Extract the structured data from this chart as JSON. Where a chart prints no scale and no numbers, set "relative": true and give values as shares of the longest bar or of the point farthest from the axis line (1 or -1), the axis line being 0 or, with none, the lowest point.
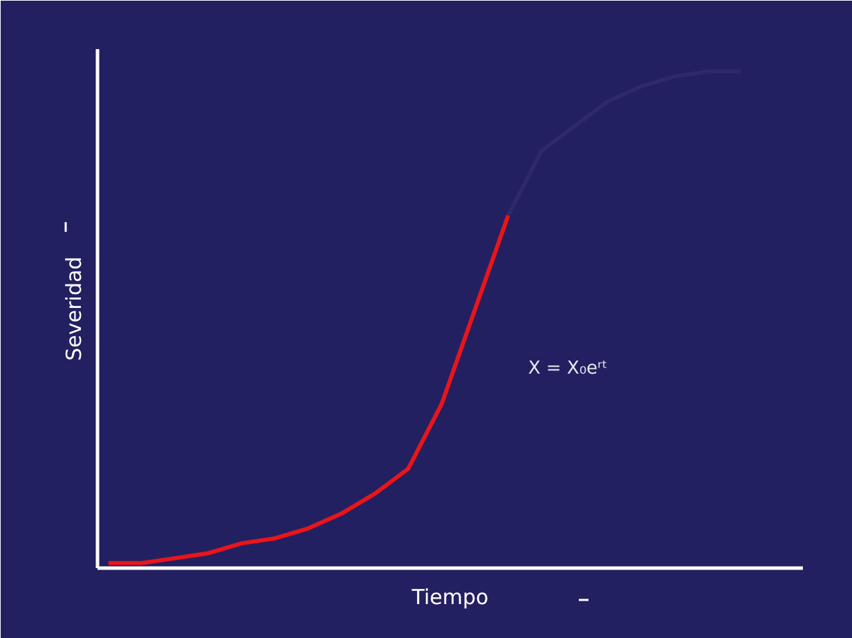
{
  "chart_data": {
    "type": "line",
    "relative": true,
    "xlabel": "Tiempo",
    "ylabel": "Severidad",
    "categories": [
      null,
      null,
      null,
      null,
      null,
      null,
      null,
      null,
      null,
      null,
      null,
      null,
      null,
      null,
      null,
      null,
      null,
      null,
      null,
      null
    ],
    "series": [
      {
        "color": "#e8151b",
        "values": [
          0.01,
          0.01,
          0.02,
          0.03,
          0.05,
          0.06,
          0.08,
          0.11,
          0.15,
          0.2,
          0.33,
          0.52,
          0.71,
          null,
          null,
          null,
          null,
          null,
          null,
          null
        ]
      },
      {
        "color": "#2e2968",
        "values": [
          null,
          null,
          null,
          null,
          null,
          null,
          null,
          null,
          null,
          null,
          null,
          null,
          0.71,
          0.84,
          0.89,
          0.94,
          0.97,
          0.99,
          1.0,
          1.0
        ]
      }
    ],
    "annotations": [
      {
        "text": "X = X₀eʳᵗ"
      }
    ],
    "grid": false,
    "marker": "none",
    "line_style": "solid"
  }
}
